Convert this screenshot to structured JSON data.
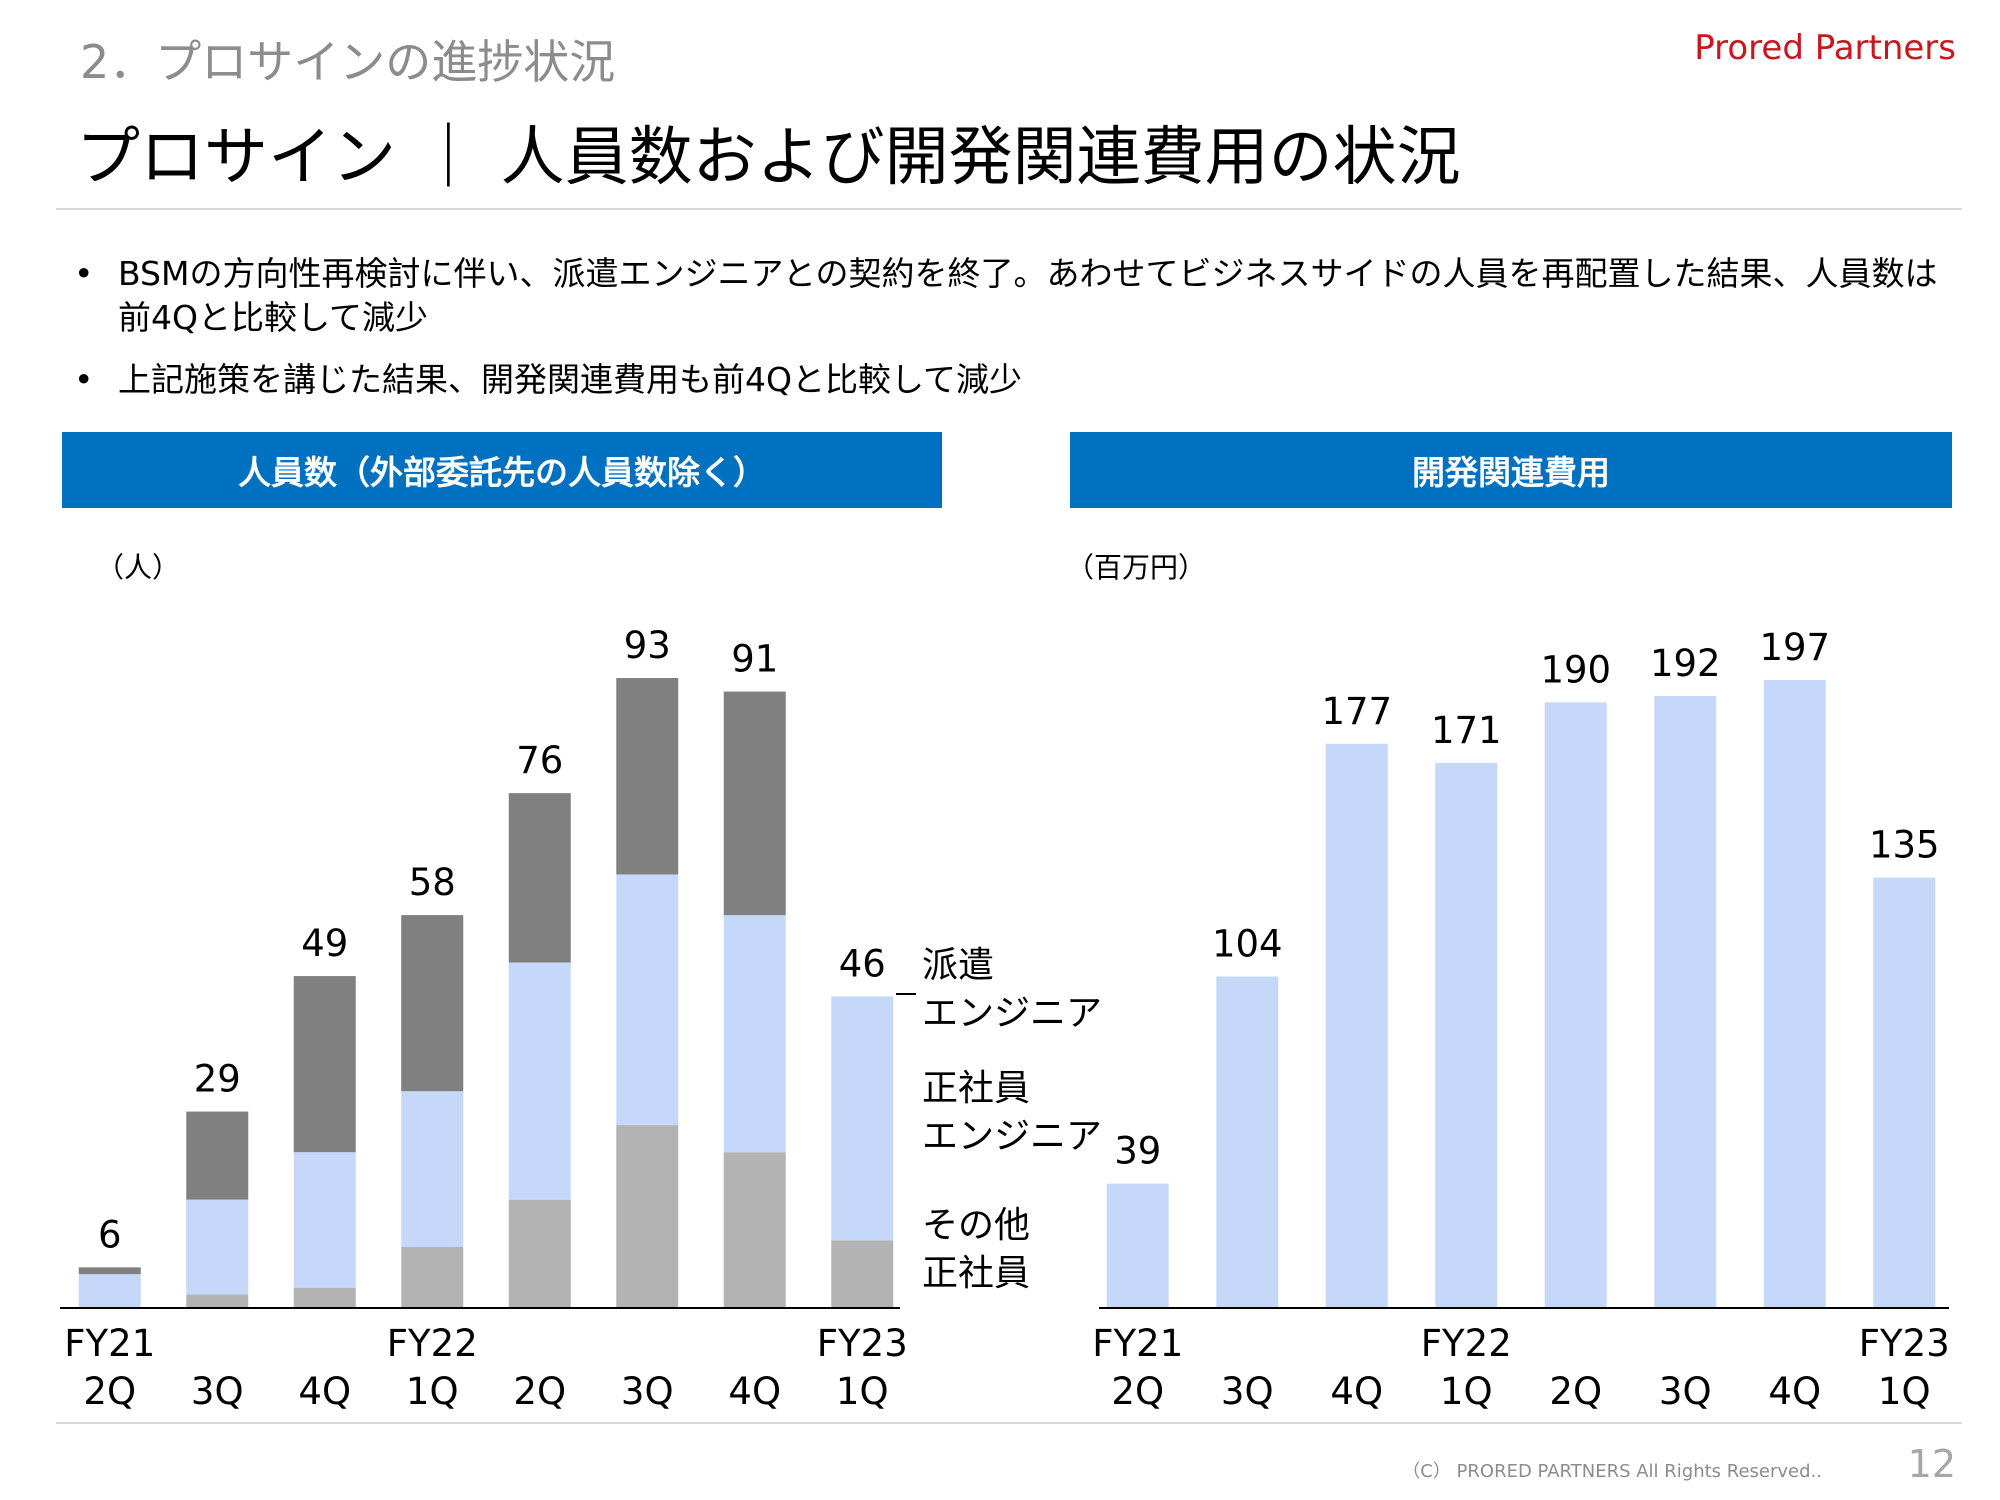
{
  "header": {
    "section": "2．プロサインの進捗状況",
    "brand": "Prored Partners",
    "title": "プロサイン ｜ 人員数および開発関連費用の状況"
  },
  "bullets": [
    "BSMの方向性再検討に伴い、派遣エンジニアとの契約を終了。あわせてビジネスサイドの人員を再配置した結果、人員数は前4Qと比較して減少",
    "上記施策を講じた結果、開発関連費用も前4Qと比較して減少"
  ],
  "left_panel": {
    "heading": "人員数（外部委託先の人員数除く）",
    "unit": "（人）"
  },
  "right_panel": {
    "heading": "開発関連費用",
    "unit": "（百万円）"
  },
  "legend": {
    "dispatch": [
      "派遣",
      "エンジニア"
    ],
    "fulltime_eng": [
      "正社員",
      "エンジニア"
    ],
    "other": [
      "その他",
      "正社員"
    ]
  },
  "colors": {
    "other": "#b3b3b3",
    "fulltime_eng": "#c5d8fa",
    "dispatch": "#808080",
    "cost": "#c5d8fa",
    "header_bg": "#0070c0",
    "brand": "#c8171e"
  },
  "chart_data": [
    {
      "type": "bar",
      "stacked": true,
      "categories": [
        [
          "FY21",
          "2Q"
        ],
        [
          "",
          "3Q"
        ],
        [
          "",
          "4Q"
        ],
        [
          "FY22",
          "1Q"
        ],
        [
          "",
          "2Q"
        ],
        [
          "",
          "3Q"
        ],
        [
          "",
          "4Q"
        ],
        [
          "FY23",
          "1Q"
        ]
      ],
      "series": [
        {
          "name": "その他正社員",
          "values": [
            0,
            2,
            3,
            9,
            16,
            27,
            23,
            10
          ]
        },
        {
          "name": "正社員エンジニア",
          "values": [
            5,
            14,
            20,
            23,
            35,
            37,
            35,
            36
          ]
        },
        {
          "name": "派遣エンジニア",
          "values": [
            1,
            13,
            26,
            26,
            25,
            29,
            33,
            0
          ]
        }
      ],
      "totals": [
        6,
        29,
        49,
        58,
        76,
        93,
        91,
        46
      ],
      "ylabel": "（人）",
      "ylim": [
        0,
        100
      ]
    },
    {
      "type": "bar",
      "categories": [
        [
          "FY21",
          "2Q"
        ],
        [
          "",
          "3Q"
        ],
        [
          "",
          "4Q"
        ],
        [
          "FY22",
          "1Q"
        ],
        [
          "",
          "2Q"
        ],
        [
          "",
          "3Q"
        ],
        [
          "",
          "4Q"
        ],
        [
          "FY23",
          "1Q"
        ]
      ],
      "values": [
        39,
        104,
        177,
        171,
        190,
        192,
        197,
        135
      ],
      "ylabel": "（百万円）",
      "ylim": [
        0,
        200
      ]
    }
  ],
  "footer": {
    "copyright": "（C） PRORED PARTNERS All Rights Reserved..",
    "page": "12"
  }
}
